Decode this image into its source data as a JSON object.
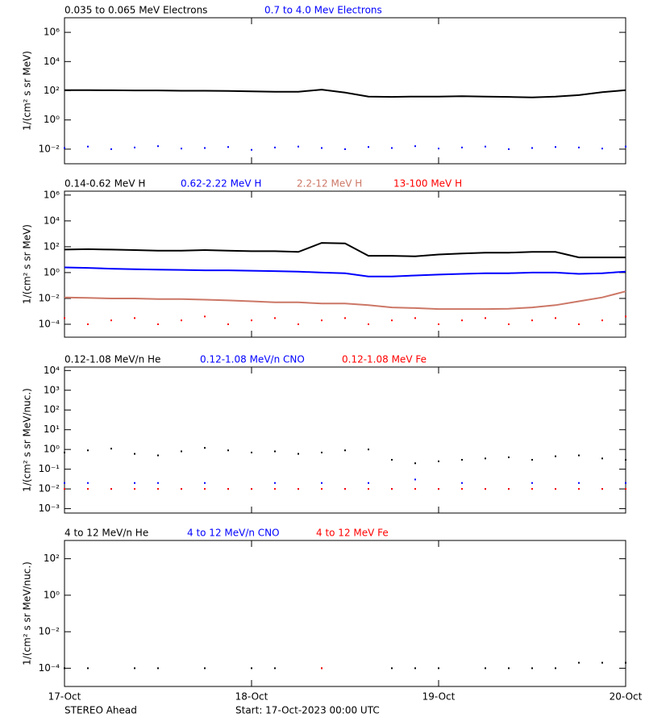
{
  "chart_data": [
    {
      "type": "line",
      "ylabel": "1/(cm² s sr MeV)",
      "ylog": true,
      "ylim": [
        0.001,
        10000000
      ],
      "yticks": [
        {
          "value": 1000000,
          "label": "10⁶"
        },
        {
          "value": 10000,
          "label": "10⁴"
        },
        {
          "value": 100,
          "label": "10²"
        },
        {
          "value": 1,
          "label": "10⁰"
        },
        {
          "value": 0.01,
          "label": "10⁻²"
        }
      ],
      "xlim": [
        0,
        3
      ],
      "xticks": [
        0,
        1,
        2,
        3
      ],
      "x": [
        0,
        0.125,
        0.25,
        0.375,
        0.5,
        0.625,
        0.75,
        0.875,
        1,
        1.125,
        1.25,
        1.375,
        1.5,
        1.625,
        1.75,
        1.875,
        2,
        2.125,
        2.25,
        2.375,
        2.5,
        2.625,
        2.75,
        2.875,
        3
      ],
      "series": [
        {
          "name": "0.035 to 0.065 MeV Electrons",
          "color": "#000000",
          "mode": "lines",
          "values": [
            110,
            110,
            108,
            105,
            105,
            100,
            100,
            98,
            90,
            85,
            85,
            120,
            75,
            40,
            38,
            40,
            40,
            42,
            40,
            38,
            35,
            40,
            50,
            80,
            110
          ]
        },
        {
          "name": "0.7 to 4.0 Mev Electrons",
          "color": "#0000ff",
          "mode": "markers",
          "values": [
            0.012,
            0.015,
            0.01,
            0.013,
            0.016,
            0.011,
            0.012,
            0.014,
            0.009,
            0.013,
            0.015,
            0.012,
            0.01,
            0.014,
            0.012,
            0.016,
            0.011,
            0.013,
            0.015,
            0.01,
            0.012,
            0.014,
            0.013,
            0.011,
            0.015
          ]
        }
      ]
    },
    {
      "type": "line",
      "ylabel": "1/(cm² s sr MeV)",
      "ylog": true,
      "ylim": [
        1e-05,
        2000000
      ],
      "yticks": [
        {
          "value": 1000000,
          "label": "10⁶"
        },
        {
          "value": 10000,
          "label": "10⁴"
        },
        {
          "value": 100,
          "label": "10²"
        },
        {
          "value": 1,
          "label": "10⁰"
        },
        {
          "value": 0.01,
          "label": "10⁻²"
        },
        {
          "value": 0.0001,
          "label": "10⁻⁴"
        }
      ],
      "xlim": [
        0,
        3
      ],
      "xticks": [
        0,
        1,
        2,
        3
      ],
      "x": [
        0,
        0.125,
        0.25,
        0.375,
        0.5,
        0.625,
        0.75,
        0.875,
        1,
        1.125,
        1.25,
        1.375,
        1.5,
        1.625,
        1.75,
        1.875,
        2,
        2.125,
        2.25,
        2.375,
        2.5,
        2.625,
        2.75,
        2.875,
        3
      ],
      "series": [
        {
          "name": "0.14-0.62 MeV H",
          "color": "#000000",
          "mode": "lines",
          "values": [
            60,
            65,
            60,
            55,
            50,
            50,
            55,
            50,
            45,
            45,
            40,
            200,
            180,
            20,
            20,
            18,
            25,
            30,
            35,
            35,
            40,
            40,
            15,
            15,
            15
          ]
        },
        {
          "name": "0.62-2.22 MeV H",
          "color": "#0000ff",
          "mode": "lines",
          "values": [
            2.5,
            2.3,
            2,
            1.8,
            1.7,
            1.6,
            1.5,
            1.5,
            1.4,
            1.3,
            1.2,
            1,
            0.9,
            0.5,
            0.5,
            0.6,
            0.7,
            0.8,
            0.9,
            0.9,
            1,
            1,
            0.8,
            0.9,
            1.2
          ]
        },
        {
          "name": "2.2-12 MeV H",
          "color": "#cc7766",
          "mode": "lines",
          "values": [
            0.012,
            0.011,
            0.01,
            0.01,
            0.009,
            0.009,
            0.008,
            0.007,
            0.006,
            0.005,
            0.005,
            0.004,
            0.004,
            0.003,
            0.002,
            0.0018,
            0.0015,
            0.0015,
            0.0015,
            0.0016,
            0.002,
            0.003,
            0.006,
            0.012,
            0.035
          ]
        },
        {
          "name": "13-100 MeV H",
          "color": "#ff0000",
          "mode": "markers",
          "values": [
            0.0003,
            0.0001,
            0.0002,
            0.0003,
            0.0001,
            0.0002,
            0.0004,
            0.0001,
            0.0002,
            0.0003,
            0.0001,
            0.0002,
            0.0003,
            0.0001,
            0.0002,
            0.0003,
            0.0001,
            0.0002,
            0.0003,
            0.0001,
            0.0002,
            0.0003,
            0.0001,
            0.0002,
            0.0004
          ]
        }
      ]
    },
    {
      "type": "line",
      "ylabel": "1/(cm² s sr MeV/nuc.)",
      "ylog": true,
      "ylim": [
        0.0006,
        15000
      ],
      "yticks": [
        {
          "value": 10000,
          "label": "10⁴"
        },
        {
          "value": 1000,
          "label": "10³"
        },
        {
          "value": 100,
          "label": "10²"
        },
        {
          "value": 10,
          "label": "10¹"
        },
        {
          "value": 1,
          "label": "10⁰"
        },
        {
          "value": 0.1,
          "label": "10⁻¹"
        },
        {
          "value": 0.01,
          "label": "10⁻²"
        },
        {
          "value": 0.001,
          "label": "10⁻³"
        }
      ],
      "xlim": [
        0,
        3
      ],
      "xticks": [
        0,
        1,
        2,
        3
      ],
      "x": [
        0,
        0.125,
        0.25,
        0.375,
        0.5,
        0.625,
        0.75,
        0.875,
        1,
        1.125,
        1.25,
        1.375,
        1.5,
        1.625,
        1.75,
        1.875,
        2,
        2.125,
        2.25,
        2.375,
        2.5,
        2.625,
        2.75,
        2.875,
        3
      ],
      "series": [
        {
          "name": "0.12-1.08 MeV/n He",
          "color": "#000000",
          "mode": "markers",
          "values": [
            0.7,
            0.9,
            1.1,
            0.6,
            0.5,
            0.8,
            1.2,
            0.9,
            0.7,
            0.8,
            0.6,
            0.7,
            0.9,
            1,
            0.3,
            0.2,
            0.25,
            0.3,
            0.35,
            0.4,
            0.3,
            0.45,
            0.5,
            0.35,
            0.3
          ]
        },
        {
          "name": "0.12-1.08 MeV/n CNO",
          "color": "#0000ff",
          "mode": "markers",
          "values": [
            0.02,
            0.02,
            0.01,
            0.02,
            0.02,
            0.01,
            0.02,
            0.01,
            0.01,
            0.02,
            0.01,
            0.02,
            0.01,
            0.02,
            0.01,
            0.03,
            0.01,
            0.02,
            0.01,
            0.01,
            0.02,
            0.01,
            0.02,
            0.01,
            0.02
          ]
        },
        {
          "name": "0.12-1.08 MeV Fe",
          "color": "#ff0000",
          "mode": "markers",
          "values": [
            0.01,
            0.01,
            0.01,
            0.01,
            0.01,
            0.01,
            0.01,
            0.01,
            0.01,
            0.01,
            0.01,
            0.01,
            0.01,
            0.01,
            0.01,
            0.01,
            0.01,
            0.01,
            0.01,
            0.01,
            0.01,
            0.01,
            0.01,
            0.01,
            0.01
          ]
        }
      ]
    },
    {
      "type": "line",
      "ylabel": "1/(cm² s sr MeV/nuc.)",
      "ylog": true,
      "ylim": [
        1e-05,
        1000
      ],
      "yticks": [
        {
          "value": 100,
          "label": "10²"
        },
        {
          "value": 1,
          "label": "10⁰"
        },
        {
          "value": 0.01,
          "label": "10⁻²"
        },
        {
          "value": 0.0001,
          "label": "10⁻⁴"
        }
      ],
      "xlim": [
        0,
        3
      ],
      "xticks": [
        {
          "value": 0,
          "label": "17-Oct"
        },
        {
          "value": 1,
          "label": "18-Oct"
        },
        {
          "value": 2,
          "label": "19-Oct"
        },
        {
          "value": 3,
          "label": "20-Oct"
        }
      ],
      "x": [
        0,
        0.125,
        0.25,
        0.375,
        0.5,
        0.625,
        0.75,
        0.875,
        1,
        1.125,
        1.25,
        1.375,
        1.5,
        1.625,
        1.75,
        1.875,
        2,
        2.125,
        2.25,
        2.375,
        2.5,
        2.625,
        2.75,
        2.875,
        3
      ],
      "series": [
        {
          "name": "4 to 12 MeV/n He",
          "color": "#000000",
          "mode": "markers",
          "values": [
            0.0001,
            0.0001,
            null,
            0.0001,
            0.0001,
            null,
            0.0001,
            null,
            0.0001,
            0.0001,
            null,
            0.0001,
            null,
            null,
            0.0001,
            0.0001,
            0.0001,
            null,
            0.0001,
            0.0001,
            0.0001,
            0.0001,
            0.0002,
            0.0002,
            0.0002
          ]
        },
        {
          "name": "4 to 12 MeV/n CNO",
          "color": "#0000ff",
          "mode": "markers",
          "values": [
            null,
            null,
            null,
            null,
            null,
            null,
            null,
            null,
            null,
            null,
            null,
            null,
            null,
            null,
            null,
            null,
            null,
            null,
            null,
            null,
            null,
            null,
            null,
            null,
            null
          ]
        },
        {
          "name": "4 to 12 MeV Fe",
          "color": "#ff0000",
          "mode": "markers",
          "values": [
            null,
            null,
            null,
            null,
            null,
            null,
            null,
            null,
            null,
            null,
            null,
            0.0001,
            null,
            null,
            null,
            null,
            null,
            null,
            null,
            null,
            null,
            null,
            null,
            null,
            null
          ]
        }
      ]
    }
  ],
  "footer": {
    "left": "STEREO Ahead",
    "center": "Start: 17-Oct-2023 00:00 UTC"
  }
}
